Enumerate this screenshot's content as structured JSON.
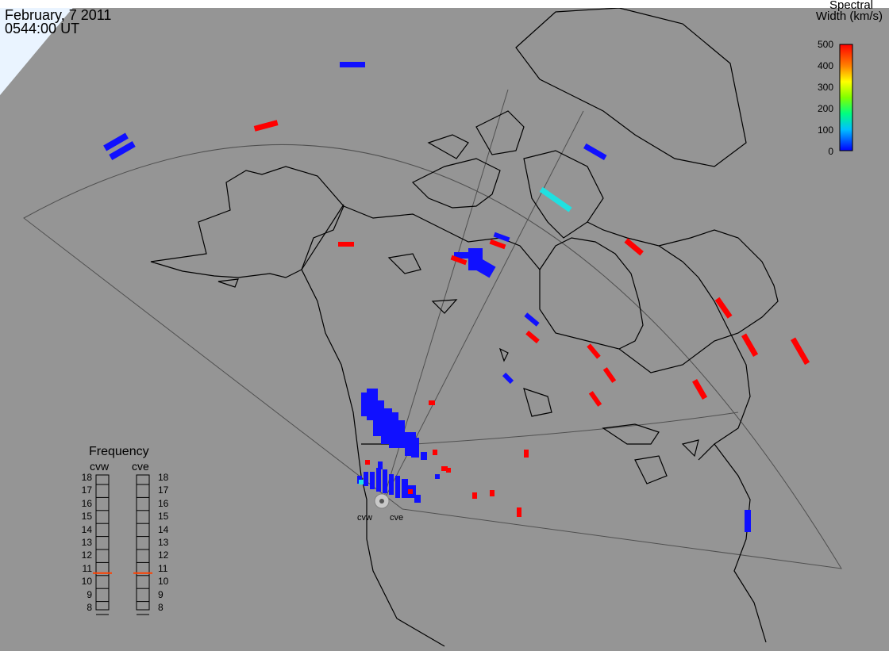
{
  "header": {
    "date": "February, 7 2011",
    "time": "0544:00 UT"
  },
  "colorbar": {
    "title_line1": "Spectral",
    "title_line2": "Width (km/s)",
    "ticks": [
      "500",
      "400",
      "300",
      "200",
      "100",
      "0"
    ],
    "min": 0,
    "max": 500,
    "colors": [
      "#0000ff",
      "#00c0ff",
      "#00ff80",
      "#80ff00",
      "#ffff00",
      "#ff8000",
      "#ff0000"
    ]
  },
  "radars": {
    "west_label": "cvw",
    "east_label": "cve"
  },
  "frequency_panel": {
    "title": "Frequency",
    "col_west": "cvw",
    "col_east": "cve",
    "scale": [
      "18",
      "17",
      "16",
      "15",
      "14",
      "13",
      "12",
      "11",
      "10",
      "9",
      "8"
    ],
    "cvw_value_mhz": 10.7,
    "cve_value_mhz": 10.7,
    "marker_color": "#ff4000"
  },
  "colors": {
    "background": "#959595",
    "coast": "#000000",
    "blue_echo": "#1010ff",
    "red_echo": "#ff0000",
    "cyan_echo": "#20e0e0"
  }
}
